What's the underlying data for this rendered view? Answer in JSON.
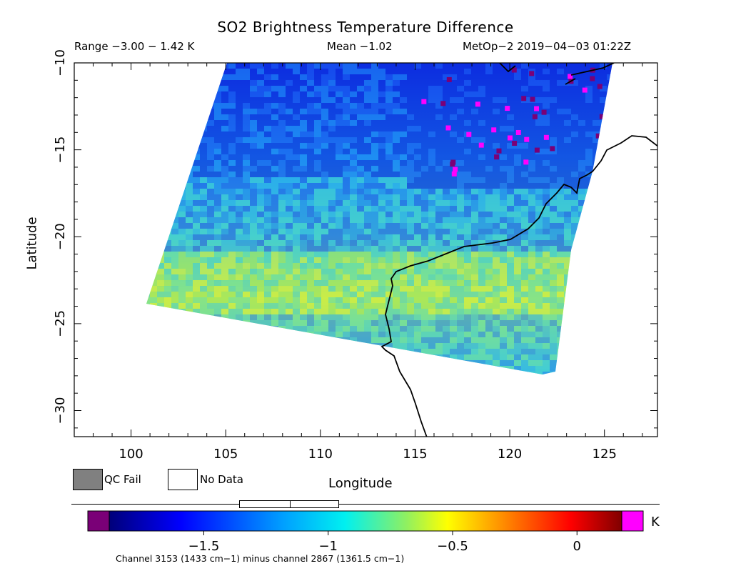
{
  "title": "SO2 Brightness Temperature Difference",
  "range_text": "Range −3.00 − 1.42 K",
  "mean_text": "Mean −1.02",
  "satellite_text": "MetOp−2 2019−04−03 01:22Z",
  "xaxis": {
    "label": "Longitude",
    "ticks": [
      "100",
      "105",
      "110",
      "115",
      "120",
      "125"
    ],
    "range": [
      97,
      127.8
    ]
  },
  "yaxis": {
    "label": "Latitude",
    "ticks": [
      "−10",
      "−15",
      "−20",
      "−25",
      "−30"
    ],
    "range": [
      -31.5,
      -10
    ]
  },
  "legend": {
    "qc_fail": "QC Fail",
    "no_data": "No Data"
  },
  "colorbar": {
    "unit": "K",
    "ticks": [
      "−1.5",
      "−1",
      "−0.5",
      "0"
    ],
    "tick_values": [
      -1.5,
      -1,
      -0.5,
      0
    ],
    "range": [
      -1.88,
      0.18
    ]
  },
  "footer": "Channel 3153 (1433 cm−1) minus channel 2867 (1361.5 cm−1)",
  "colors": {
    "low": "#7a0077",
    "high": "#ff00ff",
    "qc_fail": "#808080"
  }
}
